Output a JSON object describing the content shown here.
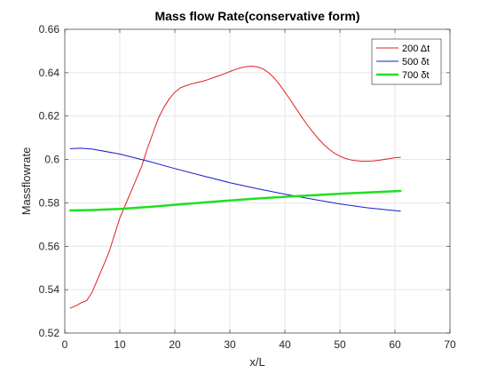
{
  "chart_data": {
    "type": "line",
    "title": "Mass flow Rate(conservative form)",
    "xlabel": "x/L",
    "ylabel": "Massflowrate",
    "xlim": [
      0,
      70
    ],
    "ylim": [
      0.52,
      0.66
    ],
    "xticks": [
      0,
      10,
      20,
      30,
      40,
      50,
      60,
      70
    ],
    "xtick_labels": [
      "0",
      "10",
      "20",
      "30",
      "40",
      "50",
      "60",
      "70"
    ],
    "yticks": [
      0.52,
      0.54,
      0.56,
      0.58,
      0.6,
      0.62,
      0.64,
      0.66
    ],
    "ytick_labels": [
      "0.52",
      "0.54",
      "0.56",
      "0.58",
      "0.6",
      "0.62",
      "0.64",
      "0.66"
    ],
    "grid": true,
    "legend_position": "top-right",
    "series": [
      {
        "name": "200 Δt",
        "color": "#e02020",
        "width": 1,
        "x": [
          1,
          2,
          3,
          4,
          5,
          6,
          7,
          8,
          9,
          10,
          11,
          12,
          13,
          14,
          15,
          16,
          17,
          18,
          19,
          20,
          21,
          22,
          23,
          24,
          25,
          26,
          27,
          28,
          29,
          30,
          31,
          32,
          33,
          34,
          35,
          36,
          37,
          38,
          39,
          40,
          41,
          42,
          43,
          44,
          45,
          46,
          47,
          48,
          49,
          50,
          51,
          52,
          53,
          54,
          55,
          56,
          57,
          58,
          59,
          60,
          61
        ],
        "y": [
          0.5315,
          0.5325,
          0.534,
          0.535,
          0.539,
          0.545,
          0.551,
          0.557,
          0.565,
          0.573,
          0.579,
          0.585,
          0.591,
          0.597,
          0.605,
          0.612,
          0.619,
          0.624,
          0.628,
          0.631,
          0.633,
          0.634,
          0.6348,
          0.6355,
          0.636,
          0.6368,
          0.6377,
          0.6386,
          0.6395,
          0.6405,
          0.6415,
          0.6423,
          0.6428,
          0.643,
          0.6427,
          0.6418,
          0.6401,
          0.6377,
          0.6346,
          0.6311,
          0.6274,
          0.6236,
          0.6198,
          0.6162,
          0.6129,
          0.6098,
          0.6071,
          0.6048,
          0.6029,
          0.6015,
          0.6005,
          0.5998,
          0.5994,
          0.5992,
          0.5992,
          0.5993,
          0.5996,
          0.6,
          0.6004,
          0.6008,
          0.601
        ]
      },
      {
        "name": "500 δt",
        "color": "#1a1acc",
        "width": 1,
        "x": [
          1,
          3,
          5,
          10,
          15,
          20,
          25,
          30,
          35,
          40,
          45,
          50,
          55,
          61
        ],
        "y": [
          0.605,
          0.6052,
          0.6048,
          0.6025,
          0.5993,
          0.5958,
          0.5925,
          0.5893,
          0.5865,
          0.584,
          0.5817,
          0.5795,
          0.5777,
          0.5762
        ]
      },
      {
        "name": "700 δt",
        "color": "#1fe01f",
        "width": 2.5,
        "x": [
          1,
          5,
          10,
          15,
          20,
          25,
          30,
          35,
          40,
          45,
          50,
          55,
          61
        ],
        "y": [
          0.5765,
          0.5767,
          0.5772,
          0.5781,
          0.5791,
          0.5801,
          0.5811,
          0.582,
          0.5828,
          0.5835,
          0.5842,
          0.5848,
          0.5855
        ]
      }
    ]
  }
}
